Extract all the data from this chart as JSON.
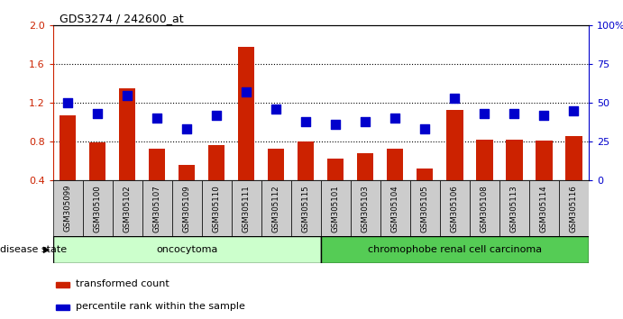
{
  "title": "GDS3274 / 242600_at",
  "samples": [
    "GSM305099",
    "GSM305100",
    "GSM305102",
    "GSM305107",
    "GSM305109",
    "GSM305110",
    "GSM305111",
    "GSM305112",
    "GSM305115",
    "GSM305101",
    "GSM305103",
    "GSM305104",
    "GSM305105",
    "GSM305106",
    "GSM305108",
    "GSM305113",
    "GSM305114",
    "GSM305116"
  ],
  "transformed_count": [
    1.07,
    0.79,
    1.35,
    0.73,
    0.56,
    0.76,
    1.78,
    0.73,
    0.8,
    0.62,
    0.68,
    0.73,
    0.52,
    1.13,
    0.82,
    0.82,
    0.81,
    0.86
  ],
  "percentile_rank": [
    50,
    43,
    55,
    40,
    33,
    42,
    57,
    46,
    38,
    36,
    38,
    40,
    33,
    53,
    43,
    43,
    42,
    45
  ],
  "bar_color": "#cc2200",
  "marker_color": "#0000cc",
  "ylim_left": [
    0.4,
    2.0
  ],
  "ylim_right": [
    0,
    100
  ],
  "yticks_left": [
    0.4,
    0.8,
    1.2,
    1.6,
    2.0
  ],
  "yticks_right": [
    0,
    25,
    50,
    75,
    100
  ],
  "ytick_labels_right": [
    "0",
    "25",
    "50",
    "75",
    "100%"
  ],
  "hlines": [
    0.8,
    1.2,
    1.6
  ],
  "oncocytoma_count": 9,
  "chromophobe_count": 9,
  "oncocytoma_color": "#ccffcc",
  "chromophobe_color": "#55cc55",
  "group_label_onco": "oncocytoma",
  "group_label_chrom": "chromophobe renal cell carcinoma",
  "disease_state_label": "disease state",
  "legend_bar": "transformed count",
  "legend_marker": "percentile rank within the sample",
  "tick_label_color_left": "#cc2200",
  "tick_label_color_right": "#0000cc",
  "xtick_bg_color": "#cccccc"
}
